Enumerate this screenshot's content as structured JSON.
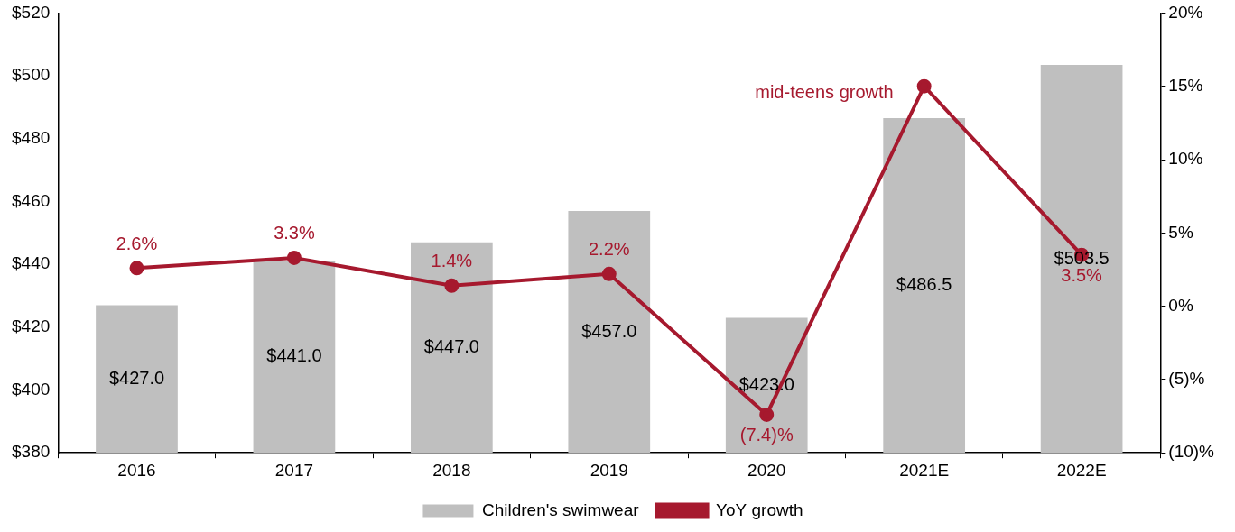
{
  "chart_data": {
    "type": "bar",
    "categories": [
      "2016",
      "2017",
      "2018",
      "2019",
      "2020",
      "2021E",
      "2022E"
    ],
    "series": [
      {
        "name": "Children's swimwear",
        "type": "bar",
        "color": "#bfbfbf",
        "values": [
          427.0,
          441.0,
          447.0,
          457.0,
          423.0,
          486.5,
          503.5
        ],
        "value_labels": [
          "$427.0",
          "$441.0",
          "$447.0",
          "$457.0",
          "$423.0",
          "$486.5",
          "$503.5"
        ]
      },
      {
        "name": "YoY growth",
        "type": "line",
        "color": "#a6192e",
        "marker": "circle",
        "axis": "y2",
        "values": [
          2.6,
          3.3,
          1.4,
          2.2,
          -7.4,
          15,
          3.5
        ],
        "value_labels": [
          "2.6%",
          "3.3%",
          "1.4%",
          "2.2%",
          "(7.4)%",
          null,
          "3.5%"
        ]
      }
    ],
    "ylim": [
      380,
      520
    ],
    "yticks": [
      {
        "value": 380,
        "label": "$380"
      },
      {
        "value": 400,
        "label": "$400"
      },
      {
        "value": 420,
        "label": "$420"
      },
      {
        "value": 440,
        "label": "$440"
      },
      {
        "value": 460,
        "label": "$460"
      },
      {
        "value": 480,
        "label": "$480"
      },
      {
        "value": 500,
        "label": "$500"
      },
      {
        "value": 520,
        "label": "$520"
      }
    ],
    "y2lim": [
      -10,
      20
    ],
    "y2ticks": [
      {
        "value": -10,
        "label": "(10)%"
      },
      {
        "value": -5,
        "label": "(5)%"
      },
      {
        "value": 0,
        "label": "0%"
      },
      {
        "value": 5,
        "label": "5%"
      },
      {
        "value": 10,
        "label": "10%"
      },
      {
        "value": 15,
        "label": "15%"
      },
      {
        "value": 20,
        "label": "20%"
      }
    ],
    "grid": false,
    "legend": "bottom",
    "data_labels": true,
    "annotations": [
      {
        "text": "mid-teens growth",
        "category": "2021E",
        "series": "YoY growth"
      }
    ]
  }
}
